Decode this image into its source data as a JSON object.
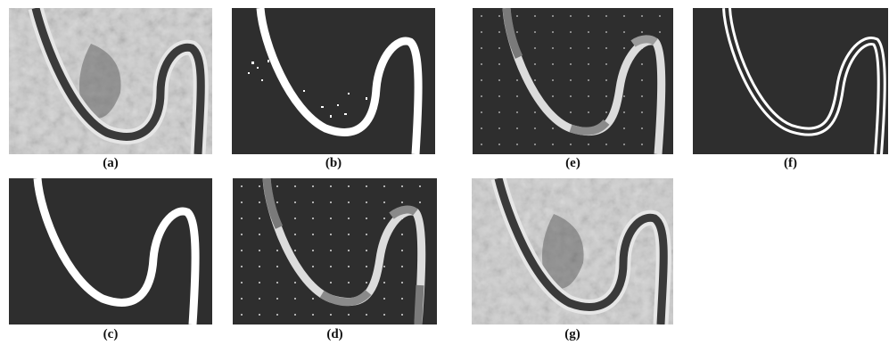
{
  "figure": {
    "panels": [
      {
        "id": "a",
        "caption": "(a)",
        "kind": "aerial"
      },
      {
        "id": "b",
        "caption": "(b)",
        "kind": "binary-noisy"
      },
      {
        "id": "c",
        "caption": "(c)",
        "kind": "binary-clean"
      },
      {
        "id": "d",
        "caption": "(d)",
        "kind": "grid-segments"
      },
      {
        "id": "e",
        "caption": "(e)",
        "kind": "grid-segments"
      },
      {
        "id": "f",
        "caption": "(f)",
        "kind": "outline"
      },
      {
        "id": "g",
        "caption": "(g)",
        "kind": "aerial"
      }
    ],
    "colors": {
      "dark_bg": "#2e2e2e",
      "road_white": "#ffffff",
      "aerial_light": "#cfcfcf",
      "aerial_road": "#3a3a3a",
      "grid_dot": "#c8c8c8"
    }
  }
}
